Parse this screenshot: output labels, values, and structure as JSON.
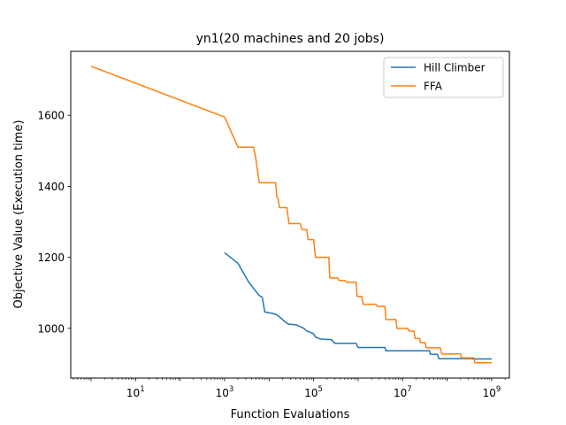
{
  "chart_data": {
    "type": "line",
    "title": "yn1(20 machines and 20 jobs)",
    "xlabel": "Function Evaluations",
    "ylabel": "Objective Value (Execution time)",
    "xscale": "log",
    "xlim": [
      0.35,
      2500000000.0
    ],
    "ylim": [
      860,
      1780
    ],
    "xticks": [
      {
        "value": 10,
        "base": "10",
        "exp": "1"
      },
      {
        "value": 1000,
        "base": "10",
        "exp": "3"
      },
      {
        "value": 100000,
        "base": "10",
        "exp": "5"
      },
      {
        "value": 10000000,
        "base": "10",
        "exp": "7"
      },
      {
        "value": 1000000000,
        "base": "10",
        "exp": "9"
      }
    ],
    "yticks": [
      1000,
      1200,
      1400,
      1600
    ],
    "grid": false,
    "legend_position": "top-right",
    "series": [
      {
        "name": "Hill Climber",
        "color": "#1f77b4",
        "points": [
          [
            1000,
            1213
          ],
          [
            2000,
            1183
          ],
          [
            3500,
            1130
          ],
          [
            6000,
            1092
          ],
          [
            7000,
            1088
          ],
          [
            8000,
            1046
          ],
          [
            12000,
            1042
          ],
          [
            15000,
            1038
          ],
          [
            18000,
            1030
          ],
          [
            22000,
            1020
          ],
          [
            27000,
            1012
          ],
          [
            40000,
            1010
          ],
          [
            50000,
            1005
          ],
          [
            60000,
            1000
          ],
          [
            70000,
            993
          ],
          [
            80000,
            990
          ],
          [
            100000,
            985
          ],
          [
            110000,
            976
          ],
          [
            140000,
            970
          ],
          [
            250000,
            968
          ],
          [
            300000,
            958
          ],
          [
            900000,
            958
          ],
          [
            1000000,
            946
          ],
          [
            4000000,
            946
          ],
          [
            4200000,
            937
          ],
          [
            40000000,
            937
          ],
          [
            42000000,
            927
          ],
          [
            60000000,
            927
          ],
          [
            65000000,
            915
          ],
          [
            350000000,
            915
          ],
          [
            380000000,
            914
          ],
          [
            1000000000,
            914
          ]
        ]
      },
      {
        "name": "FFA",
        "color": "#ff7f0e",
        "points": [
          [
            1,
            1738
          ],
          [
            1000,
            1595
          ],
          [
            2000,
            1510
          ],
          [
            4500,
            1510
          ],
          [
            5000,
            1480
          ],
          [
            6000,
            1410
          ],
          [
            14000,
            1410
          ],
          [
            15000,
            1370
          ],
          [
            16000,
            1365
          ],
          [
            17000,
            1340
          ],
          [
            25000,
            1340
          ],
          [
            28000,
            1295
          ],
          [
            50000,
            1295
          ],
          [
            55000,
            1278
          ],
          [
            70000,
            1278
          ],
          [
            75000,
            1250
          ],
          [
            100000,
            1250
          ],
          [
            110000,
            1200
          ],
          [
            220000,
            1200
          ],
          [
            230000,
            1142
          ],
          [
            350000,
            1142
          ],
          [
            370000,
            1135
          ],
          [
            500000,
            1135
          ],
          [
            550000,
            1130
          ],
          [
            900000,
            1130
          ],
          [
            950000,
            1090
          ],
          [
            1200000,
            1090
          ],
          [
            1300000,
            1068
          ],
          [
            2500000,
            1068
          ],
          [
            2700000,
            1062
          ],
          [
            4000000,
            1062
          ],
          [
            4200000,
            1025
          ],
          [
            7000000,
            1025
          ],
          [
            7500000,
            1000
          ],
          [
            13000000,
            1000
          ],
          [
            14000000,
            992
          ],
          [
            18000000,
            992
          ],
          [
            19000000,
            972
          ],
          [
            24000000,
            972
          ],
          [
            25000000,
            960
          ],
          [
            32000000,
            960
          ],
          [
            34000000,
            945
          ],
          [
            70000000,
            945
          ],
          [
            75000000,
            928
          ],
          [
            200000000,
            928
          ],
          [
            210000000,
            917
          ],
          [
            400000000,
            917
          ],
          [
            420000000,
            903
          ],
          [
            1000000000,
            903
          ]
        ]
      }
    ]
  }
}
